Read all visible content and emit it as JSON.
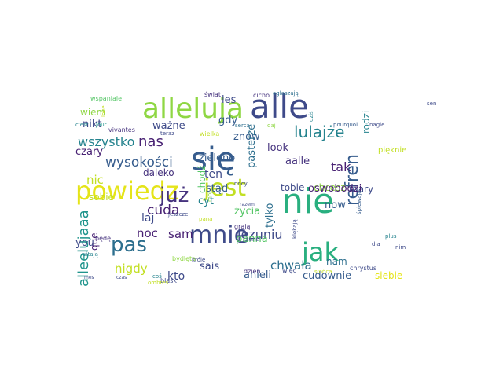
{
  "palette": {
    "dark_purple": "#482173",
    "purple": "#46337e",
    "indigo": "#3e4a89",
    "blue": "#365c8d",
    "steel": "#2d6f8e",
    "teal": "#25838e",
    "teal_green": "#1f948c",
    "green": "#29af7f",
    "light_green": "#56c667",
    "lime": "#8fd744",
    "yellow_green": "#c2df23",
    "yellow": "#e5e419"
  },
  "words": [
    {
      "text": "nie",
      "size": 44,
      "color": "#29af7f",
      "vertical": false
    },
    {
      "text": "alle",
      "size": 42,
      "color": "#3e4a89",
      "vertical": false
    },
    {
      "text": "się",
      "size": 40,
      "color": "#365c8d",
      "vertical": false
    },
    {
      "text": "alleluja",
      "size": 36,
      "color": "#8fd744",
      "vertical": false
    },
    {
      "text": "powiedz",
      "size": 32,
      "color": "#e5e419",
      "vertical": false
    },
    {
      "text": "jak",
      "size": 32,
      "color": "#29af7f",
      "vertical": false
    },
    {
      "text": "mnie",
      "size": 30,
      "color": "#3e4a89",
      "vertical": false
    },
    {
      "text": "jest",
      "size": 30,
      "color": "#c2df23",
      "vertical": false
    },
    {
      "text": "już",
      "size": 26,
      "color": "#46337e",
      "vertical": false
    },
    {
      "text": "pas",
      "size": 26,
      "color": "#2d6f8e",
      "vertical": false
    },
    {
      "text": "lulajże",
      "size": 20,
      "color": "#25838e",
      "vertical": false
    },
    {
      "text": "refren",
      "size": 22,
      "color": "#365c8d",
      "vertical": true
    },
    {
      "text": "alleelujaaa",
      "size": 18,
      "color": "#1f948c",
      "vertical": true
    },
    {
      "text": "wysokości",
      "size": 17,
      "color": "#365c8d",
      "vertical": false
    },
    {
      "text": "wszystko",
      "size": 16,
      "color": "#25838e",
      "vertical": false
    },
    {
      "text": "nas",
      "size": 18,
      "color": "#482173",
      "vertical": false
    },
    {
      "text": "tak",
      "size": 16,
      "color": "#482173",
      "vertical": false
    },
    {
      "text": "cuda",
      "size": 17,
      "color": "#482173",
      "vertical": false
    },
    {
      "text": "jezuniu",
      "size": 16,
      "color": "#3e4a89",
      "vertical": false
    },
    {
      "text": "sam",
      "size": 15,
      "color": "#482173",
      "vertical": false
    },
    {
      "text": "noc",
      "size": 15,
      "color": "#482173",
      "vertical": false
    },
    {
      "text": "nigdy",
      "size": 15,
      "color": "#c2df23",
      "vertical": false
    },
    {
      "text": "chwała",
      "size": 15,
      "color": "#2d6f8e",
      "vertical": false
    },
    {
      "text": "wiem",
      "size": 12,
      "color": "#8fd744",
      "vertical": false
    },
    {
      "text": "nikt",
      "size": 13,
      "color": "#3e4a89",
      "vertical": false
    },
    {
      "text": "ważne",
      "size": 13,
      "color": "#3e4a89",
      "vertical": false
    },
    {
      "text": "zielono",
      "size": 13,
      "color": "#365c8d",
      "vertical": false
    },
    {
      "text": "gdy",
      "size": 13,
      "color": "#365c8d",
      "vertical": false
    },
    {
      "text": "znów",
      "size": 13,
      "color": "#365c8d",
      "vertical": false
    },
    {
      "text": "les",
      "size": 13,
      "color": "#3e4a89",
      "vertical": false
    },
    {
      "text": "pasterze",
      "size": 13,
      "color": "#2d6f8e",
      "vertical": true
    },
    {
      "text": "look",
      "size": 13,
      "color": "#46337e",
      "vertical": false
    },
    {
      "text": "aalle",
      "size": 13,
      "color": "#46337e",
      "vertical": false
    },
    {
      "text": "czary",
      "size": 13,
      "color": "#482173",
      "vertical": false
    },
    {
      "text": "daleko",
      "size": 12,
      "color": "#46337e",
      "vertical": false
    },
    {
      "text": "ten",
      "size": 14,
      "color": "#3e4a89",
      "vertical": false
    },
    {
      "text": "stąd",
      "size": 13,
      "color": "#365c8d",
      "vertical": false
    },
    {
      "text": "nic",
      "size": 15,
      "color": "#c2df23",
      "vertical": false
    },
    {
      "text": "laj",
      "size": 14,
      "color": "#3e4a89",
      "vertical": false
    },
    {
      "text": "sobie",
      "size": 12,
      "color": "#c2df23",
      "vertical": false
    },
    {
      "text": "tobie",
      "size": 12,
      "color": "#3e4a89",
      "vertical": false
    },
    {
      "text": "chcesz",
      "size": 12,
      "color": "#8fd744",
      "vertical": false
    },
    {
      "text": "mary",
      "size": 12,
      "color": "#3e4a89",
      "vertical": false
    },
    {
      "text": "now",
      "size": 13,
      "color": "#365c8d",
      "vertical": false
    },
    {
      "text": "życia",
      "size": 13,
      "color": "#56c667",
      "vertical": false
    },
    {
      "text": "tylko",
      "size": 13,
      "color": "#2d6f8e",
      "vertical": true
    },
    {
      "text": "oswobodzi",
      "size": 13,
      "color": "#482173",
      "vertical": false
    },
    {
      "text": "cyt",
      "size": 13,
      "color": "#25838e",
      "vertical": false
    },
    {
      "text": "panna",
      "size": 13,
      "color": "#56c667",
      "vertical": false
    },
    {
      "text": "you",
      "size": 13,
      "color": "#3e4a89",
      "vertical": false
    },
    {
      "text": "sais",
      "size": 13,
      "color": "#3e4a89",
      "vertical": false
    },
    {
      "text": "kto",
      "size": 14,
      "color": "#3e4a89",
      "vertical": false
    },
    {
      "text": "anieli",
      "size": 13,
      "color": "#365c8d",
      "vertical": false
    },
    {
      "text": "cudownie",
      "size": 13,
      "color": "#365c8d",
      "vertical": false
    },
    {
      "text": "nam",
      "size": 12,
      "color": "#2d6f8e",
      "vertical": false
    },
    {
      "text": "siebie",
      "size": 12,
      "color": "#e5e419",
      "vertical": false
    },
    {
      "text": "que",
      "size": 12,
      "color": "#482173",
      "vertical": true
    },
    {
      "text": "chodź",
      "size": 12,
      "color": "#56c667",
      "vertical": true
    },
    {
      "text": "rodzi",
      "size": 12,
      "color": "#25838e",
      "vertical": true
    },
    {
      "text": "pięknie",
      "size": 10,
      "color": "#c2df23",
      "vertical": false
    },
    {
      "text": "wspaniale",
      "size": 8,
      "color": "#56c667",
      "vertical": false
    },
    {
      "text": "świat",
      "size": 8,
      "color": "#46337e",
      "vertical": false
    },
    {
      "text": "cicho",
      "size": 8,
      "color": "#46337e",
      "vertical": false
    },
    {
      "text": "ogłaszają",
      "size": 7,
      "color": "#2d6f8e",
      "vertical": false
    },
    {
      "text": "sen",
      "size": 7,
      "color": "#3e4a89",
      "vertical": false
    },
    {
      "text": "c'est",
      "size": 7,
      "color": "#25838e",
      "vertical": false
    },
    {
      "text": "jour",
      "size": 7,
      "color": "#1f948c",
      "vertical": false
    },
    {
      "text": "love",
      "size": 7,
      "color": "#c2df23",
      "vertical": true
    },
    {
      "text": "vivantes",
      "size": 8,
      "color": "#46337e",
      "vertical": false
    },
    {
      "text": "teraz",
      "size": 7,
      "color": "#3e4a89",
      "vertical": false
    },
    {
      "text": "wielka",
      "size": 8,
      "color": "#c2df23",
      "vertical": false
    },
    {
      "text": "serca",
      "size": 7,
      "color": "#2d6f8e",
      "vertical": false
    },
    {
      "text": "daj",
      "size": 7,
      "color": "#8fd744",
      "vertical": false
    },
    {
      "text": "pourquoi",
      "size": 7,
      "color": "#365c8d",
      "vertical": false
    },
    {
      "text": "nagle",
      "size": 7,
      "color": "#3e4a89",
      "vertical": false
    },
    {
      "text": "mój",
      "size": 7,
      "color": "#8fd744",
      "vertical": true
    },
    {
      "text": "pana",
      "size": 7,
      "color": "#c2df23",
      "vertical": false
    },
    {
      "text": "razem",
      "size": 6,
      "color": "#3e4a89",
      "vertical": false
    },
    {
      "text": "grają",
      "size": 8,
      "color": "#46337e",
      "vertical": false
    },
    {
      "text": "nocy",
      "size": 7,
      "color": "#3e4a89",
      "vertical": false
    },
    {
      "text": "jeszcze",
      "size": 7,
      "color": "#3e4a89",
      "vertical": false
    },
    {
      "text": "klękają",
      "size": 7,
      "color": "#3e4a89",
      "vertical": true
    },
    {
      "text": "śpiewają",
      "size": 7,
      "color": "#365c8d",
      "vertical": true
    },
    {
      "text": "plus",
      "size": 7,
      "color": "#25838e",
      "vertical": false
    },
    {
      "text": "będę",
      "size": 8,
      "color": "#46337e",
      "vertical": false
    },
    {
      "text": "sens",
      "size": 7,
      "color": "#3e4a89",
      "vertical": false
    },
    {
      "text": "dla",
      "size": 7,
      "color": "#3e4a89",
      "vertical": false
    },
    {
      "text": "nim",
      "size": 7,
      "color": "#3e4a89",
      "vertical": false
    },
    {
      "text": "dziś",
      "size": 7,
      "color": "#25838e",
      "vertical": true
    },
    {
      "text": "witają",
      "size": 7,
      "color": "#25838e",
      "vertical": false
    },
    {
      "text": "bydlęta",
      "size": 8,
      "color": "#8fd744",
      "vertical": false
    },
    {
      "text": "króle",
      "size": 7,
      "color": "#3e4a89",
      "vertical": false
    },
    {
      "text": "coś",
      "size": 7,
      "color": "#25838e",
      "vertical": false
    },
    {
      "text": "blask",
      "size": 8,
      "color": "#3e4a89",
      "vertical": false
    },
    {
      "text": "chrystus",
      "size": 8,
      "color": "#3e4a89",
      "vertical": false
    },
    {
      "text": "więc",
      "size": 8,
      "color": "#3e4a89",
      "vertical": false
    },
    {
      "text": "słońca",
      "size": 7,
      "color": "#c2df23",
      "vertical": false
    },
    {
      "text": "dzień",
      "size": 8,
      "color": "#46337e",
      "vertical": false
    },
    {
      "text": "mes",
      "size": 6,
      "color": "#3e4a89",
      "vertical": false
    },
    {
      "text": "czas",
      "size": 6,
      "color": "#3e4a89",
      "vertical": false
    },
    {
      "text": "ombres",
      "size": 7,
      "color": "#c2df23",
      "vertical": false
    }
  ]
}
